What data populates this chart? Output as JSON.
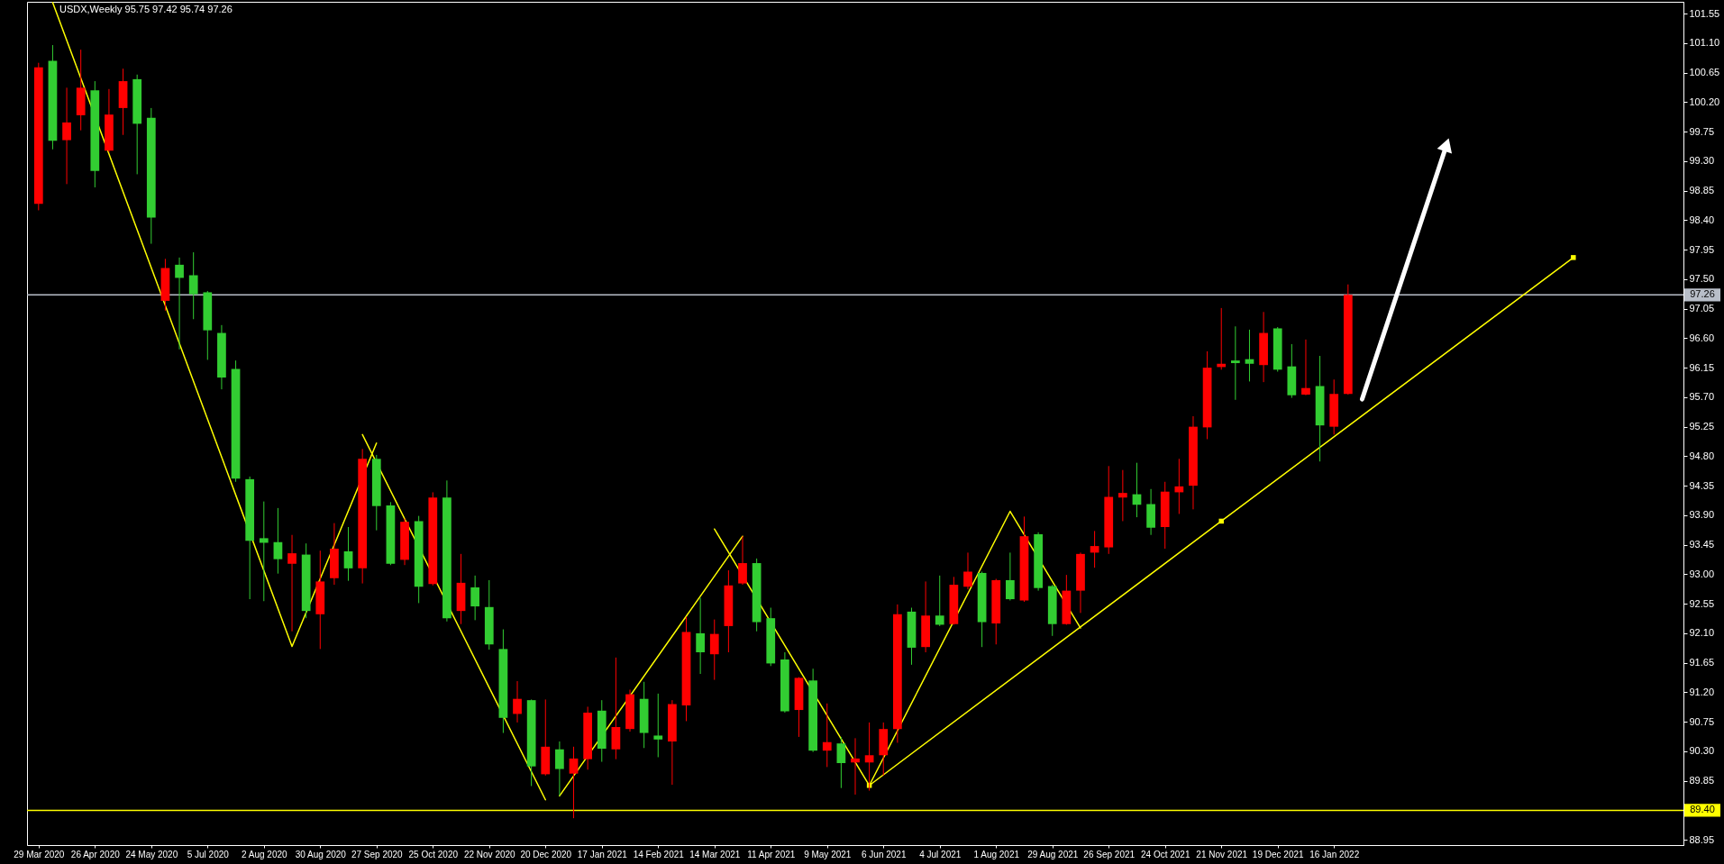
{
  "chart_data": {
    "type": "candlestick",
    "title": "USDX,Weekly 95.75 97.42 95.74 97.26",
    "categories": [
      "29 Mar 2020",
      null,
      null,
      null,
      "26 Apr 2020",
      null,
      null,
      null,
      "24 May 2020",
      null,
      null,
      null,
      "5 Jul 2020",
      null,
      null,
      null,
      "2 Aug 2020",
      null,
      null,
      null,
      "30 Aug 2020",
      null,
      null,
      null,
      "27 Sep 2020",
      null,
      null,
      null,
      "25 Oct 2020",
      null,
      null,
      null,
      "22 Nov 2020",
      null,
      null,
      null,
      "20 Dec 2020",
      null,
      null,
      null,
      "17 Jan 2021",
      null,
      null,
      null,
      "14 Feb 2021",
      null,
      null,
      null,
      "14 Mar 2021",
      null,
      null,
      null,
      "11 Apr 2021",
      null,
      null,
      null,
      "9 May 2021",
      null,
      null,
      null,
      "6 Jun 2021",
      null,
      null,
      null,
      "4 Jul 2021",
      null,
      null,
      null,
      "1 Aug 2021",
      null,
      null,
      null,
      "29 Aug 2021",
      null,
      null,
      null,
      "26 Sep 2021",
      null,
      null,
      null,
      "24 Oct 2021",
      null,
      null,
      null,
      "21 Nov 2021",
      null,
      null,
      null,
      "19 Dec 2021",
      null,
      null,
      null,
      "16 Jan 2022",
      null,
      null,
      null,
      null,
      null,
      null,
      null,
      null,
      null,
      null,
      null,
      null,
      null,
      null,
      null,
      null,
      null,
      null,
      null,
      null,
      null,
      null,
      null,
      null
    ],
    "ohlc": [
      [
        98.65,
        100.8,
        98.55,
        100.73
      ],
      [
        100.83,
        101.07,
        99.48,
        99.61
      ],
      [
        99.62,
        100.42,
        98.95,
        99.89
      ],
      [
        100.0,
        101.0,
        99.77,
        100.42
      ],
      [
        100.38,
        100.52,
        98.9,
        99.15
      ],
      [
        99.46,
        100.4,
        99.44,
        100.01
      ],
      [
        100.11,
        100.71,
        99.7,
        100.52
      ],
      [
        100.55,
        100.62,
        99.1,
        99.87
      ],
      [
        99.96,
        100.11,
        98.04,
        98.44
      ],
      [
        97.17,
        97.81,
        97.02,
        97.67
      ],
      [
        97.72,
        97.83,
        96.43,
        97.52
      ],
      [
        97.56,
        97.91,
        96.89,
        97.27
      ],
      [
        97.3,
        97.32,
        96.27,
        96.72
      ],
      [
        96.68,
        96.8,
        95.82,
        96.0
      ],
      [
        96.13,
        96.26,
        94.41,
        94.46
      ],
      [
        94.45,
        94.49,
        92.62,
        93.51
      ],
      [
        93.55,
        94.11,
        92.59,
        93.48
      ],
      [
        93.49,
        94.01,
        93.01,
        93.23
      ],
      [
        93.16,
        93.6,
        92.13,
        93.32
      ],
      [
        93.3,
        93.47,
        92.33,
        92.44
      ],
      [
        92.39,
        93.36,
        91.86,
        92.89
      ],
      [
        92.94,
        93.78,
        92.84,
        93.39
      ],
      [
        93.35,
        93.72,
        92.9,
        93.09
      ],
      [
        93.09,
        94.91,
        92.86,
        94.76
      ],
      [
        94.76,
        94.82,
        93.67,
        94.04
      ],
      [
        94.05,
        94.1,
        93.14,
        93.16
      ],
      [
        93.22,
        93.85,
        93.14,
        93.8
      ],
      [
        93.81,
        93.89,
        92.56,
        92.81
      ],
      [
        92.85,
        94.25,
        92.83,
        94.17
      ],
      [
        94.17,
        94.43,
        92.28,
        92.33
      ],
      [
        92.44,
        93.31,
        92.24,
        92.87
      ],
      [
        92.8,
        92.98,
        92.3,
        92.51
      ],
      [
        92.5,
        92.91,
        91.85,
        91.93
      ],
      [
        91.86,
        92.16,
        90.58,
        90.81
      ],
      [
        90.87,
        91.37,
        90.74,
        91.1
      ],
      [
        91.08,
        91.09,
        89.77,
        90.07
      ],
      [
        89.95,
        91.09,
        89.93,
        90.37
      ],
      [
        90.33,
        90.45,
        89.62,
        90.03
      ],
      [
        89.96,
        90.37,
        89.28,
        90.19
      ],
      [
        90.18,
        90.98,
        90.02,
        90.89
      ],
      [
        90.92,
        91.08,
        90.14,
        90.34
      ],
      [
        90.33,
        91.73,
        90.18,
        90.67
      ],
      [
        90.64,
        91.24,
        90.6,
        91.17
      ],
      [
        91.1,
        91.36,
        90.35,
        90.58
      ],
      [
        90.54,
        91.18,
        90.21,
        90.48
      ],
      [
        90.45,
        91.08,
        89.79,
        91.02
      ],
      [
        91.0,
        92.35,
        90.76,
        92.12
      ],
      [
        92.1,
        92.64,
        91.48,
        91.81
      ],
      [
        91.78,
        92.31,
        91.39,
        92.09
      ],
      [
        92.21,
        93.06,
        91.81,
        92.83
      ],
      [
        92.86,
        93.58,
        92.84,
        93.17
      ],
      [
        93.17,
        93.24,
        92.13,
        92.27
      ],
      [
        92.33,
        92.49,
        91.6,
        91.64
      ],
      [
        91.7,
        91.81,
        90.89,
        90.91
      ],
      [
        90.93,
        91.43,
        90.52,
        91.42
      ],
      [
        91.38,
        91.56,
        90.29,
        90.31
      ],
      [
        90.31,
        91.03,
        90.06,
        90.44
      ],
      [
        90.42,
        90.52,
        89.74,
        90.12
      ],
      [
        90.13,
        90.5,
        89.64,
        90.19
      ],
      [
        90.13,
        90.74,
        89.7,
        90.24
      ],
      [
        90.24,
        90.74,
        89.93,
        90.64
      ],
      [
        90.64,
        92.54,
        90.43,
        92.39
      ],
      [
        92.43,
        92.49,
        91.62,
        91.88
      ],
      [
        91.89,
        92.89,
        91.81,
        92.37
      ],
      [
        92.37,
        92.98,
        92.21,
        92.23
      ],
      [
        92.24,
        92.96,
        92.23,
        92.84
      ],
      [
        92.81,
        93.33,
        92.77,
        93.04
      ],
      [
        93.02,
        93.04,
        91.89,
        92.27
      ],
      [
        92.25,
        92.93,
        91.93,
        92.91
      ],
      [
        92.91,
        93.33,
        92.6,
        92.62
      ],
      [
        92.6,
        93.88,
        92.58,
        93.58
      ],
      [
        93.61,
        93.64,
        92.75,
        92.79
      ],
      [
        92.82,
        92.84,
        92.06,
        92.24
      ],
      [
        92.24,
        92.99,
        92.23,
        92.75
      ],
      [
        92.75,
        93.33,
        92.41,
        93.31
      ],
      [
        93.33,
        93.66,
        93.1,
        93.43
      ],
      [
        93.41,
        94.65,
        93.31,
        94.18
      ],
      [
        94.17,
        94.59,
        93.81,
        94.24
      ],
      [
        94.22,
        94.7,
        93.87,
        94.06
      ],
      [
        94.07,
        94.3,
        93.6,
        93.71
      ],
      [
        93.72,
        94.41,
        93.39,
        94.26
      ],
      [
        94.25,
        94.76,
        93.92,
        94.34
      ],
      [
        94.35,
        95.41,
        93.99,
        95.25
      ],
      [
        95.24,
        96.4,
        95.06,
        96.15
      ],
      [
        96.16,
        97.06,
        96.12,
        96.21
      ],
      [
        96.26,
        96.78,
        95.66,
        96.22
      ],
      [
        96.28,
        96.73,
        95.94,
        96.21
      ],
      [
        96.19,
        97.0,
        95.93,
        96.68
      ],
      [
        96.75,
        96.77,
        96.09,
        96.12
      ],
      [
        96.17,
        96.51,
        95.69,
        95.73
      ],
      [
        95.74,
        96.58,
        95.73,
        95.84
      ],
      [
        95.87,
        96.33,
        94.72,
        95.27
      ],
      [
        95.25,
        95.97,
        95.13,
        95.75
      ],
      [
        95.75,
        97.42,
        95.74,
        97.26
      ],
      null,
      null,
      null,
      null,
      null,
      null,
      null,
      null,
      null,
      null,
      null,
      null,
      null,
      null,
      null,
      null,
      null,
      null,
      null,
      null,
      null,
      null,
      null
    ],
    "colors": [
      "#ff0000",
      "#32cd32",
      "#ff0000",
      "#ff0000",
      "#32cd32",
      "#ff0000",
      "#ff0000",
      "#32cd32",
      "#32cd32",
      "#ff0000",
      "#32cd32",
      "#32cd32",
      "#32cd32",
      "#32cd32",
      "#32cd32",
      "#32cd32",
      "#32cd32",
      "#32cd32",
      "#ff0000",
      "#32cd32",
      "#ff0000",
      "#ff0000",
      "#32cd32",
      "#ff0000",
      "#32cd32",
      "#32cd32",
      "#ff0000",
      "#32cd32",
      "#ff0000",
      "#32cd32",
      "#ff0000",
      "#32cd32",
      "#32cd32",
      "#32cd32",
      "#ff0000",
      "#32cd32",
      "#ff0000",
      "#32cd32",
      "#ff0000",
      "#ff0000",
      "#32cd32",
      "#ff0000",
      "#ff0000",
      "#32cd32",
      "#32cd32",
      "#ff0000",
      "#ff0000",
      "#32cd32",
      "#ff0000",
      "#ff0000",
      "#ff0000",
      "#32cd32",
      "#32cd32",
      "#32cd32",
      "#ff0000",
      "#32cd32",
      "#ff0000",
      "#32cd32",
      "#ff0000",
      "#ff0000",
      "#ff0000",
      "#ff0000",
      "#32cd32",
      "#ff0000",
      "#32cd32",
      "#ff0000",
      "#ff0000",
      "#32cd32",
      "#ff0000",
      "#32cd32",
      "#ff0000",
      "#32cd32",
      "#32cd32",
      "#ff0000",
      "#ff0000",
      "#ff0000",
      "#ff0000",
      "#ff0000",
      "#32cd32",
      "#32cd32",
      "#ff0000",
      "#ff0000",
      "#ff0000",
      "#ff0000",
      "#ff0000",
      "#32cd32",
      "#32cd32",
      "#ff0000",
      "#32cd32",
      "#32cd32",
      "#ff0000",
      "#32cd32",
      "#ff0000",
      "#ff0000",
      null,
      null,
      null,
      null,
      null,
      null,
      null,
      null,
      null,
      null,
      null,
      null,
      null,
      null,
      null,
      null,
      null,
      null,
      null,
      null,
      null,
      null,
      null
    ],
    "series": [
      {
        "type": "line",
        "color": "#ffff00",
        "values": [
          null,
          101.72,
          null,
          null,
          null,
          null,
          null,
          null,
          null,
          null,
          null,
          null,
          null,
          null,
          null,
          null,
          null,
          null,
          91.9,
          null,
          null,
          null,
          null,
          null,
          95.0,
          null,
          null,
          null,
          null,
          null,
          null,
          null,
          null,
          null,
          null,
          null,
          null,
          null,
          null,
          null,
          null,
          null,
          null,
          null,
          null,
          null,
          null,
          null,
          null,
          null,
          null,
          null,
          null,
          null,
          null,
          null,
          null,
          null,
          null,
          null,
          null,
          null,
          null,
          null,
          null,
          null,
          null,
          null,
          null,
          null,
          null,
          null,
          null,
          null,
          null,
          null,
          null,
          null,
          null,
          null,
          null,
          null,
          null,
          null,
          null,
          null,
          null,
          null,
          null,
          null,
          null,
          null,
          null,
          null,
          null,
          null,
          null,
          null,
          null,
          null,
          null,
          null,
          null,
          null,
          null,
          null,
          null,
          null,
          null,
          null,
          null,
          null,
          null,
          null,
          null,
          null,
          null
        ]
      },
      {
        "type": "line",
        "color": "#ffff00",
        "values": [
          null,
          null,
          null,
          null,
          null,
          null,
          null,
          null,
          null,
          null,
          null,
          null,
          null,
          null,
          null,
          null,
          null,
          null,
          null,
          null,
          null,
          null,
          null,
          95.13,
          null,
          null,
          null,
          null,
          null,
          null,
          null,
          null,
          null,
          null,
          null,
          null,
          89.56,
          null,
          null,
          null,
          null,
          null,
          null,
          null,
          null,
          null,
          null,
          null,
          null,
          null,
          null,
          null,
          null,
          null,
          null,
          null,
          null,
          null,
          null,
          null,
          null,
          null,
          null,
          null,
          null,
          null,
          null,
          null,
          null,
          null,
          null,
          null,
          null,
          null,
          null,
          null,
          null,
          null,
          null,
          null,
          null,
          null,
          null,
          null,
          null,
          null,
          null,
          null,
          null,
          null,
          null,
          null,
          null,
          null,
          null,
          null,
          null,
          null,
          null,
          null,
          null,
          null,
          null,
          null,
          null,
          null,
          null,
          null,
          null,
          null,
          null,
          null,
          null,
          null,
          null,
          null,
          null
        ]
      },
      {
        "type": "line",
        "color": "#ffff00",
        "values": [
          null,
          null,
          null,
          null,
          null,
          null,
          null,
          null,
          null,
          null,
          null,
          null,
          null,
          null,
          null,
          null,
          null,
          null,
          null,
          null,
          null,
          null,
          null,
          null,
          null,
          null,
          null,
          null,
          null,
          null,
          null,
          null,
          null,
          null,
          null,
          null,
          null,
          89.62,
          null,
          null,
          null,
          null,
          null,
          null,
          null,
          null,
          null,
          null,
          null,
          null,
          93.58,
          null,
          null,
          null,
          null,
          null,
          null,
          null,
          null,
          null,
          null,
          null,
          null,
          null,
          null,
          null,
          null,
          null,
          null,
          null,
          null,
          null,
          null,
          null,
          null,
          null,
          null,
          null,
          null,
          null,
          null,
          null,
          null,
          null,
          null,
          null,
          null,
          null,
          null,
          null,
          null,
          null,
          null,
          null,
          null,
          null,
          null,
          null,
          null,
          null,
          null,
          null,
          null,
          null,
          null,
          null,
          null,
          null,
          null,
          null,
          null,
          null,
          null,
          null,
          null,
          null,
          null
        ]
      },
      {
        "type": "line",
        "color": "#ffff00",
        "values": [
          null,
          null,
          null,
          null,
          null,
          null,
          null,
          null,
          null,
          null,
          null,
          null,
          null,
          null,
          null,
          null,
          null,
          null,
          null,
          null,
          null,
          null,
          null,
          null,
          null,
          null,
          null,
          null,
          null,
          null,
          null,
          null,
          null,
          null,
          null,
          null,
          null,
          null,
          null,
          null,
          null,
          null,
          null,
          null,
          null,
          null,
          null,
          null,
          93.69,
          null,
          null,
          null,
          null,
          null,
          null,
          null,
          null,
          null,
          null,
          89.78,
          null,
          null,
          null,
          null,
          null,
          null,
          null,
          null,
          null,
          93.96,
          null,
          null,
          null,
          null,
          92.18,
          null,
          null,
          null,
          null,
          null,
          null,
          null,
          null,
          null,
          null,
          null,
          null,
          null,
          null,
          null,
          null,
          null,
          null,
          null,
          null,
          null,
          null,
          null,
          null,
          null,
          null,
          null,
          null,
          null,
          null,
          null,
          null,
          null,
          null,
          null,
          null,
          null,
          null,
          null,
          null,
          null,
          null
        ]
      },
      {
        "type": "line",
        "color": "#ffff00",
        "marker": "square",
        "values": [
          null,
          null,
          null,
          null,
          null,
          null,
          null,
          null,
          null,
          null,
          null,
          null,
          null,
          null,
          null,
          null,
          null,
          null,
          null,
          null,
          null,
          null,
          null,
          null,
          null,
          null,
          null,
          null,
          null,
          null,
          null,
          null,
          null,
          null,
          null,
          null,
          null,
          null,
          null,
          null,
          null,
          null,
          null,
          null,
          null,
          null,
          null,
          null,
          null,
          null,
          null,
          null,
          null,
          null,
          null,
          null,
          null,
          null,
          null,
          89.78,
          null,
          null,
          null,
          null,
          null,
          null,
          null,
          null,
          null,
          null,
          null,
          null,
          null,
          null,
          null,
          null,
          null,
          null,
          null,
          null,
          null,
          null,
          null,
          null,
          93.81,
          null,
          null,
          null,
          null,
          null,
          null,
          null,
          null,
          null,
          null,
          null,
          null,
          null,
          null,
          null,
          null,
          null,
          null,
          null,
          null,
          null,
          null,
          null,
          null,
          97.83,
          null,
          null,
          null,
          null,
          null,
          null,
          null
        ]
      },
      {
        "type": "line",
        "color": "#ffffff",
        "marker": "triangle",
        "values": [
          null,
          null,
          null,
          null,
          null,
          null,
          null,
          null,
          null,
          null,
          null,
          null,
          null,
          null,
          null,
          null,
          null,
          null,
          null,
          null,
          null,
          null,
          null,
          null,
          null,
          null,
          null,
          null,
          null,
          null,
          null,
          null,
          null,
          null,
          null,
          null,
          null,
          null,
          null,
          null,
          null,
          null,
          null,
          null,
          null,
          null,
          null,
          null,
          null,
          null,
          null,
          null,
          null,
          null,
          null,
          null,
          null,
          null,
          null,
          null,
          null,
          null,
          null,
          null,
          null,
          null,
          null,
          null,
          null,
          null,
          null,
          null,
          null,
          null,
          null,
          null,
          null,
          null,
          null,
          null,
          null,
          null,
          null,
          null,
          null,
          null,
          null,
          null,
          null,
          null,
          null,
          null,
          null,
          null,
          95.67,
          null,
          null,
          null,
          null,
          null,
          99.55,
          null,
          null,
          null,
          null,
          null,
          null,
          null,
          null,
          null,
          null,
          null,
          null,
          null,
          null,
          null,
          null
        ]
      }
    ],
    "ref_lines": [
      {
        "axis": "y",
        "value": 97.26,
        "label": "97.26",
        "color": "#b8bec8"
      },
      {
        "axis": "y",
        "value": 89.4,
        "label": "89.40",
        "color": "#ffff00"
      }
    ],
    "ylim": [
      88.87,
      101.73
    ],
    "yticks": [
      88.95,
      {
        "value": 89.4,
        "label": null
      },
      89.85,
      {
        "value": 90.3,
        "label": "90.30"
      },
      90.75,
      {
        "value": 91.2,
        "label": "91.20"
      },
      91.65,
      {
        "value": 92.1,
        "label": "92.10"
      },
      92.55,
      {
        "value": 93,
        "label": "93.00"
      },
      93.45,
      {
        "value": 93.9,
        "label": "93.90"
      },
      94.35,
      {
        "value": 94.8,
        "label": "94.80"
      },
      95.25,
      {
        "value": 95.7,
        "label": "95.70"
      },
      96.15,
      {
        "value": 96.6,
        "label": "96.60"
      },
      97.05,
      {
        "value": 97.5,
        "label": "97.50"
      },
      97.95,
      {
        "value": 98.4,
        "label": "98.40"
      },
      98.85,
      {
        "value": 99.3,
        "label": "99.30"
      },
      99.75,
      {
        "value": 100.2,
        "label": "100.20"
      },
      100.65,
      {
        "value": 101.1,
        "label": "101.10"
      },
      101.55
    ]
  }
}
